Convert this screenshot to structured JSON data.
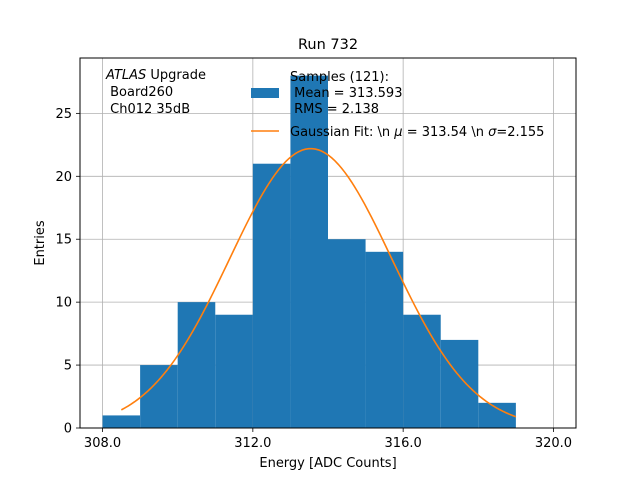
{
  "chart_data": {
    "type": "bar",
    "title": "Run 732",
    "xlabel": "Energy [ADC Counts]",
    "ylabel": "Entries",
    "xlim": [
      307.4,
      320.6
    ],
    "ylim": [
      0,
      29.4
    ],
    "grid": true,
    "xticks": [
      308.0,
      312.0,
      316.0,
      320.0
    ],
    "xtick_labels": [
      "308.0",
      "312.0",
      "316.0",
      "320.0"
    ],
    "yticks": [
      0,
      5,
      10,
      15,
      20,
      25
    ],
    "ytick_labels": [
      "0",
      "5",
      "10",
      "15",
      "20",
      "25"
    ],
    "bin_edges": [
      308,
      309,
      310,
      311,
      312,
      313,
      314,
      315,
      316,
      317,
      318,
      319
    ],
    "values": [
      1,
      5,
      10,
      9,
      21,
      28,
      15,
      14,
      9,
      7,
      2
    ],
    "histogram_color": "#1f77b4",
    "fit": {
      "type": "gaussian",
      "amplitude": 22.2,
      "mu": 313.54,
      "sigma": 2.155,
      "x_range": [
        308.5,
        319.0
      ],
      "color": "#ff7f0e"
    },
    "annotation": {
      "italic": "ATLAS",
      "rest": " Upgrade",
      "line2": " Board260",
      "line3": " Ch012 35dB"
    },
    "legend": {
      "position": "top-right",
      "hist_label_1": "Samples (121):",
      "hist_label_2": " Mean = 313.593",
      "hist_label_3": " RMS = 2.138",
      "fit_label_1": "Gaussian Fit: \\n ",
      "fit_label_mu": "μ",
      "fit_label_2": " = 313.54 \\n ",
      "fit_label_sigma": "σ",
      "fit_label_3": "=2.155"
    }
  }
}
